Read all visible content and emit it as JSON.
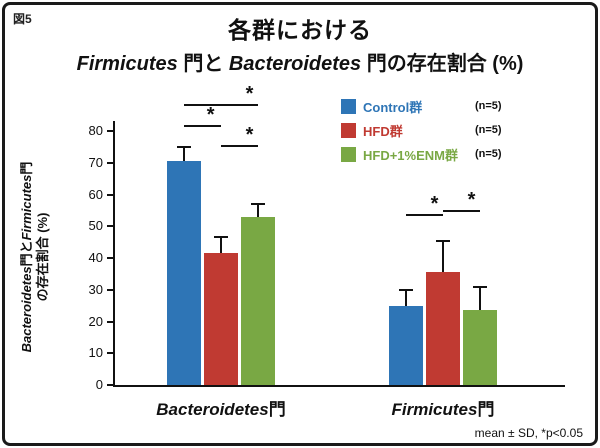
{
  "figure_label": "図5",
  "title": {
    "line1": "各群における",
    "firmicutes": "Firmicutes",
    "mid": " 門と ",
    "bacteroidetes": "Bacteroidetes",
    "suffix": " 門の存在割合 (%)"
  },
  "axis": {
    "ylabel": {
      "b": "Bacteroidetes",
      "mid1": "門と",
      "f": "Firmicutes",
      "mid2": "門",
      "line2": "の存在割合 (%)"
    }
  },
  "chart_data": {
    "type": "bar",
    "title": "各群における Firmicutes門と Bacteroidetes門の存在割合 (%)",
    "categories": [
      {
        "latin": "Bacteroidetes",
        "suffix": "門"
      },
      {
        "latin": "Firmicutes",
        "suffix": "門"
      }
    ],
    "series": [
      {
        "name": "Control群",
        "n_label": "(n=5)",
        "color": "#2e75b6",
        "values": [
          70.5,
          25
        ],
        "errors": [
          4.5,
          5
        ]
      },
      {
        "name": "HFD群",
        "n_label": "(n=5)",
        "color": "#c03a32",
        "values": [
          41.5,
          35.5
        ],
        "errors": [
          5,
          10
        ]
      },
      {
        "name": "HFD+1%ENM群",
        "n_label": "(n=5)",
        "color": "#79a844",
        "values": [
          53,
          23.5
        ],
        "errors": [
          4,
          7.5
        ]
      }
    ],
    "ylabel": "Bacteroidetes門とFirmicutes門の存在割合 (%)",
    "ylim": [
      0,
      80
    ],
    "ytick_step": 10,
    "grid": false,
    "legend_position": "top-right",
    "significance": [
      {
        "category": 0,
        "from": 0,
        "to": 2,
        "y": 88.5,
        "label": "*",
        "label_pos": 0.9
      },
      {
        "category": 0,
        "from": 0,
        "to": 1,
        "y": 82,
        "label": "*",
        "label_pos": 0.75
      },
      {
        "category": 0,
        "from": 1,
        "to": 2,
        "y": 75.5,
        "label": "*",
        "label_pos": 0.8
      },
      {
        "category": 1,
        "from": 0,
        "to": 1,
        "y": 54,
        "label": "*",
        "label_pos": 0.8
      },
      {
        "category": 1,
        "from": 1,
        "to": 2,
        "y": 55,
        "label": "*",
        "label_pos": 0.8
      }
    ],
    "footnote": "mean ± SD, *p<0.05"
  }
}
